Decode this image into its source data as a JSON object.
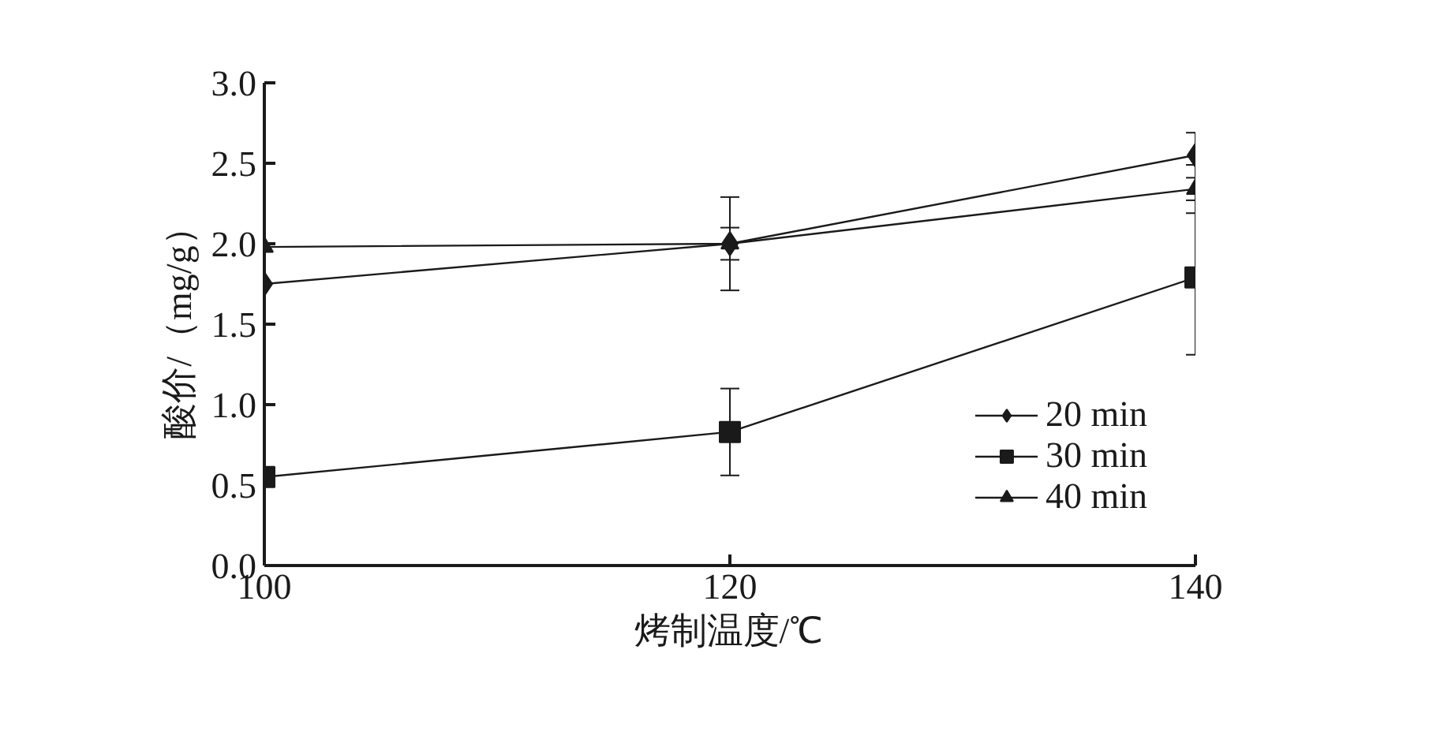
{
  "chart_data": {
    "type": "line",
    "xlabel": "烤制温度/℃",
    "ylabel": "酸价/（mg/g）",
    "x": [
      100,
      120,
      140
    ],
    "xlim": [
      100,
      140
    ],
    "xticks": [
      100,
      120,
      140
    ],
    "ylim": [
      0,
      3.0
    ],
    "yticks": [
      {
        "value": 0,
        "label": "0.0"
      },
      {
        "value": 0.5,
        "label": "0.5"
      },
      {
        "value": 1,
        "label": "1.0"
      },
      {
        "value": 1.5,
        "label": "1.5"
      },
      {
        "value": 2,
        "label": "2.0"
      },
      {
        "value": 2.5,
        "label": "2.5"
      },
      {
        "value": 3,
        "label": "3.0"
      }
    ],
    "grid": false,
    "legend": "bottom right",
    "line_style": "solid",
    "series": [
      {
        "name": "20 min",
        "color": "#1a1a1a",
        "marker": "diamond",
        "values": [
          1.75,
          2.0,
          2.55
        ],
        "errors": [
          null,
          0.29,
          0.14
        ]
      },
      {
        "name": "30 min",
        "color": "#1a1a1a",
        "marker": "square",
        "values": [
          0.55,
          0.83,
          1.79
        ],
        "errors": [
          null,
          0.27,
          0.48
        ]
      },
      {
        "name": "40 min",
        "color": "#1a1a1a",
        "marker": "triangle",
        "values": [
          1.98,
          2.0,
          2.34
        ],
        "errors": [
          null,
          0.1,
          0.15
        ]
      }
    ]
  }
}
